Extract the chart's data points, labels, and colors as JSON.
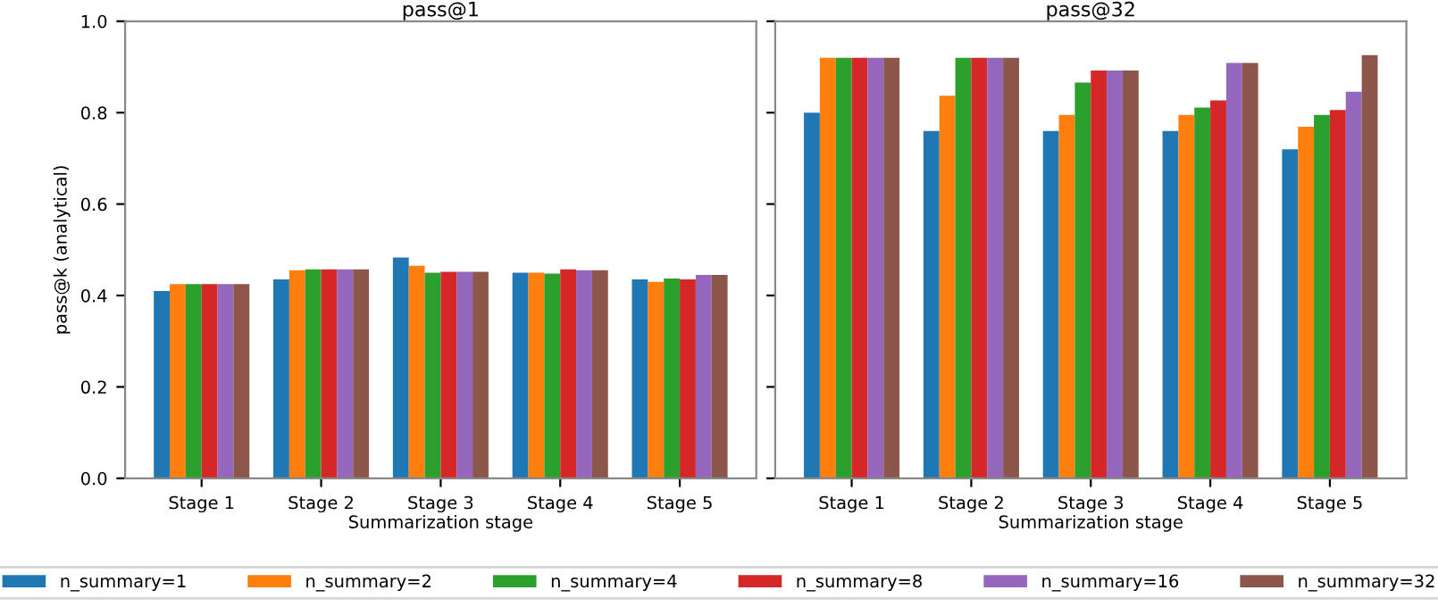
{
  "chart_data": [
    {
      "type": "bar",
      "title": "pass@1",
      "xlabel": "Summarization stage",
      "ylabel": "pass@k (analytical)",
      "categories": [
        "Stage 1",
        "Stage 2",
        "Stage 3",
        "Stage 4",
        "Stage 5"
      ],
      "ylim": [
        0,
        1
      ],
      "yticks": [
        {
          "value": 0,
          "label": "0.0"
        },
        0.2,
        0.4,
        0.6,
        0.8,
        {
          "value": 1,
          "label": "1.0"
        }
      ],
      "legend": "bottom",
      "series": [
        {
          "name": "n_summary=1",
          "color": "#1f77b4",
          "values": [
            0.41,
            0.435,
            0.483,
            0.45,
            0.435
          ]
        },
        {
          "name": "n_summary=2",
          "color": "#ff7f0e",
          "values": [
            0.425,
            0.455,
            0.465,
            0.45,
            0.43
          ]
        },
        {
          "name": "n_summary=4",
          "color": "#2ca02c",
          "values": [
            0.425,
            0.457,
            0.45,
            0.448,
            0.437
          ]
        },
        {
          "name": "n_summary=8",
          "color": "#d62728",
          "values": [
            0.425,
            0.457,
            0.452,
            0.457,
            0.435
          ]
        },
        {
          "name": "n_summary=16",
          "color": "#9467bd",
          "values": [
            0.425,
            0.457,
            0.452,
            0.455,
            0.445
          ]
        },
        {
          "name": "n_summary=32",
          "color": "#8c564b",
          "values": [
            0.425,
            0.457,
            0.452,
            0.455,
            0.445
          ]
        }
      ]
    },
    {
      "type": "bar",
      "title": "pass@32",
      "xlabel": "Summarization stage",
      "categories": [
        "Stage 1",
        "Stage 2",
        "Stage 3",
        "Stage 4",
        "Stage 5"
      ],
      "ylim": [
        0,
        1
      ],
      "yticks": [
        {
          "value": 0,
          "label": null
        },
        {
          "value": 0.2,
          "label": null
        },
        {
          "value": 0.4,
          "label": null
        },
        {
          "value": 0.6,
          "label": null
        },
        {
          "value": 0.8,
          "label": null
        },
        {
          "value": 1,
          "label": null
        }
      ],
      "tick_labels": "x",
      "series": [
        {
          "color": "#1f77b4",
          "values": [
            0.8,
            0.76,
            0.76,
            0.76,
            0.72
          ]
        },
        {
          "color": "#ff7f0e",
          "values": [
            0.92,
            0.837,
            0.795,
            0.795,
            0.769
          ]
        },
        {
          "color": "#2ca02c",
          "values": [
            0.92,
            0.92,
            0.866,
            0.811,
            0.795
          ]
        },
        {
          "color": "#d62728",
          "values": [
            0.92,
            0.92,
            0.892,
            0.827,
            0.806
          ]
        },
        {
          "color": "#9467bd",
          "values": [
            0.92,
            0.92,
            0.892,
            0.909,
            0.846
          ]
        },
        {
          "color": "#8c564b",
          "values": [
            0.92,
            0.92,
            0.892,
            0.909,
            0.926
          ]
        }
      ]
    }
  ]
}
